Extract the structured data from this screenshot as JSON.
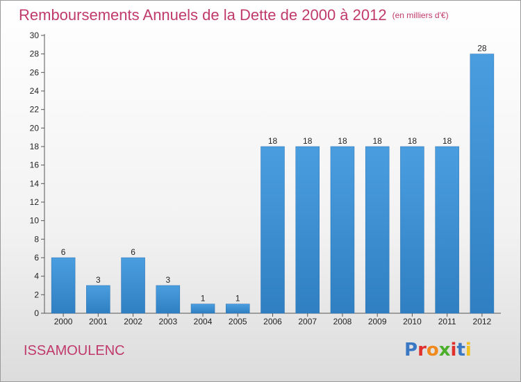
{
  "title": "Remboursements Annuels de la Dette de 2000 à 2012",
  "subtitle": "(en milliers d'€)",
  "commune": "ISSAMOULENC",
  "logo": {
    "text": "Proxiti",
    "letter_colors": [
      "#3a78c4",
      "#e0302e",
      "#f08a1c",
      "#4caf2a",
      "#e0302e",
      "#3a78c4",
      "#f0c020"
    ]
  },
  "colors": {
    "bar": "#4a9ee0",
    "bar_dark": "#2f7fc2",
    "title": "#c0396b"
  },
  "chart_data": {
    "type": "bar",
    "categories": [
      "2000",
      "2001",
      "2002",
      "2003",
      "2004",
      "2005",
      "2006",
      "2007",
      "2008",
      "2009",
      "2010",
      "2011",
      "2012"
    ],
    "values": [
      6,
      3,
      6,
      3,
      1,
      1,
      18,
      18,
      18,
      18,
      18,
      18,
      28
    ],
    "data_labels": [
      "6",
      "3",
      "6",
      "3",
      "1",
      "1",
      "18",
      "18",
      "18",
      "18",
      "18",
      "18",
      "28"
    ],
    "ylim": [
      0,
      30
    ],
    "yticks": [
      0,
      2,
      4,
      6,
      8,
      10,
      12,
      14,
      16,
      18,
      20,
      22,
      24,
      26,
      28,
      30
    ],
    "grid": false,
    "xlabel": "",
    "ylabel": ""
  }
}
